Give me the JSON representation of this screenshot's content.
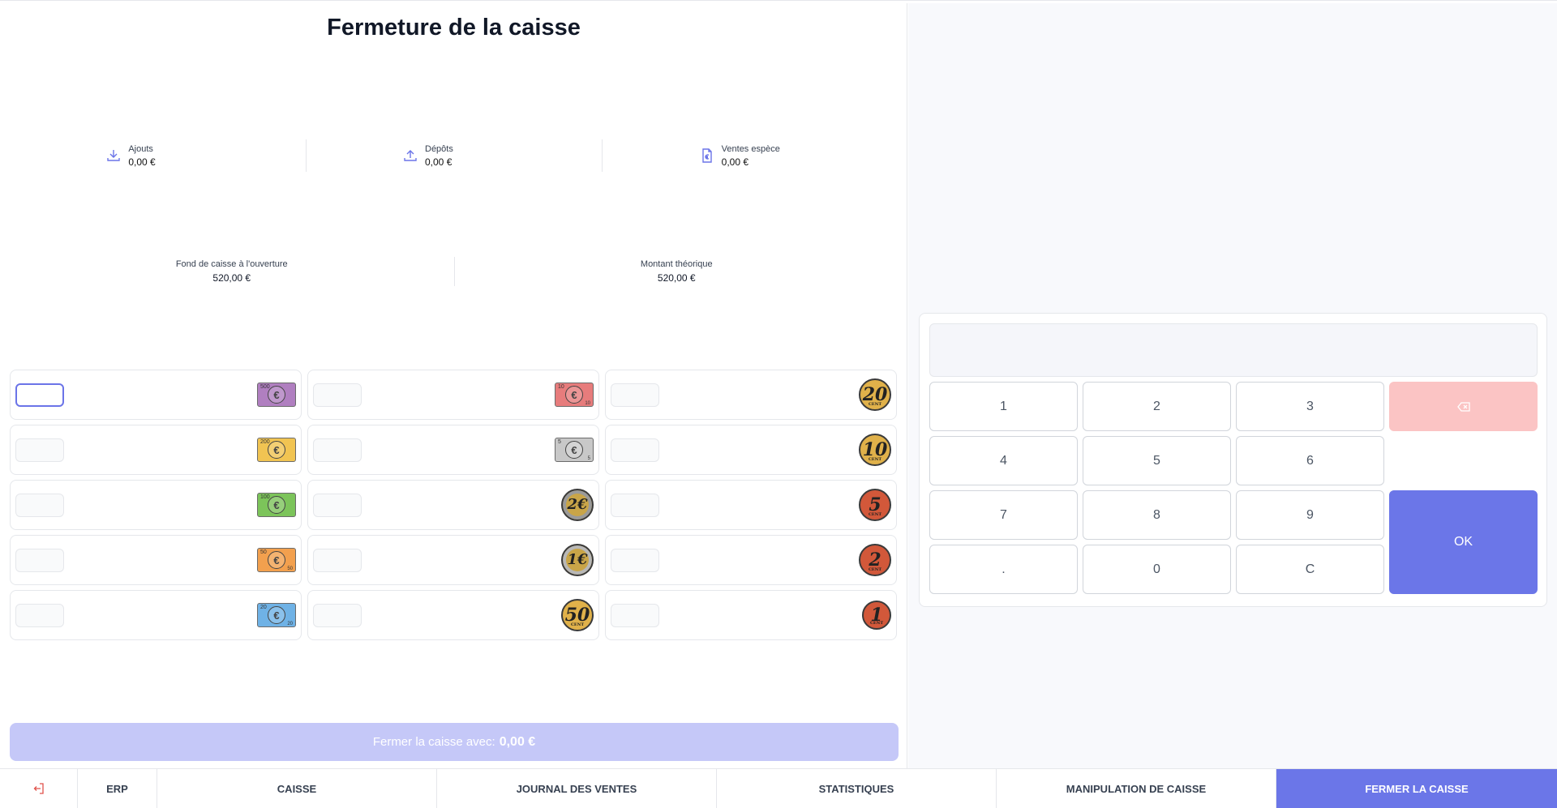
{
  "page": {
    "title": "Fermeture de la caisse"
  },
  "stats": [
    {
      "label": "Ajouts",
      "value": "0,00 €",
      "icon": "download-icon"
    },
    {
      "label": "Dépôts",
      "value": "0,00 €",
      "icon": "upload-icon"
    },
    {
      "label": "Ventes espèce",
      "value": "0,00 €",
      "icon": "euro-file-icon"
    }
  ],
  "fond": {
    "label": "Fond de caisse à l'ouverture",
    "value": "520,00 €"
  },
  "theorique": {
    "label": "Montant théorique",
    "value": "520,00 €"
  },
  "denominations": {
    "notes_500": {
      "label": "500",
      "color": "#b07fc0"
    },
    "notes_200": {
      "label": "200",
      "color": "#f1c452"
    },
    "notes_100": {
      "label": "100",
      "color": "#7cc45a"
    },
    "notes_50": {
      "label": "50",
      "color": "#f2a04e"
    },
    "notes_20": {
      "label": "20",
      "color": "#6fb2e6"
    },
    "notes_10": {
      "label": "10",
      "color": "#e77c7c"
    },
    "notes_5": {
      "label": "5",
      "color": "#c8c8c8"
    },
    "coin_2e": {
      "label": "2€",
      "color": "#c9a548"
    },
    "coin_1e": {
      "label": "1€",
      "color": "#c9a548"
    },
    "coin_50c": {
      "label": "50",
      "unit": "CENT",
      "color": "#e0b14a"
    },
    "coin_20c": {
      "label": "20",
      "unit": "CENT",
      "color": "#e0b14a"
    },
    "coin_10c": {
      "label": "10",
      "unit": "CENT",
      "color": "#e0b14a"
    },
    "coin_5c": {
      "label": "5",
      "unit": "CENT",
      "color": "#d2583a"
    },
    "coin_2c": {
      "label": "2",
      "unit": "CENT",
      "color": "#d2583a"
    },
    "coin_1c": {
      "label": "1",
      "unit": "CENT",
      "color": "#d2583a"
    }
  },
  "submit": {
    "label": "Fermer la caisse avec:",
    "amount": "0,00 €"
  },
  "keypad": {
    "display": "",
    "keys": [
      "1",
      "2",
      "3",
      "4",
      "5",
      "6",
      "7",
      "8",
      "9",
      ".",
      "0",
      "C"
    ],
    "ok": "OK",
    "backspace_icon": "backspace-icon"
  },
  "nav": {
    "logout_icon": "logout-icon",
    "erp": "ERP",
    "caisse": "CAISSE",
    "journal": "JOURNAL DES VENTES",
    "statistiques": "STATISTIQUES",
    "manipulation": "MANIPULATION DE CAISSE",
    "fermer": "FERMER LA CAISSE"
  },
  "colors": {
    "accent": "#6b76e8",
    "submit_disabled": "#c5c8f8",
    "backspace": "#fbc4c4"
  }
}
